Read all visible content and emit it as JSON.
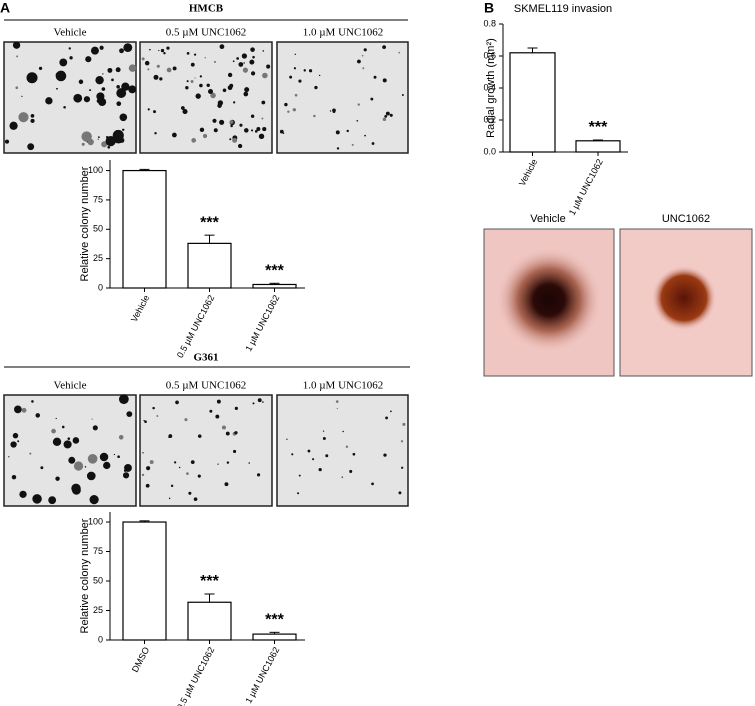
{
  "figure": {
    "panel_a": "A",
    "panel_b": "B",
    "hmcb": {
      "title": "HMCB",
      "columns": [
        "Vehicle",
        "0.5 µM UNC1062",
        "1.0 µM UNC1062"
      ]
    },
    "g361": {
      "title": "G361",
      "columns": [
        "Vehicle",
        "0.5 µM UNC1062",
        "1.0 µM UNC1062"
      ]
    },
    "skmel_images": {
      "columns": [
        "Vehicle",
        "UNC1062"
      ]
    }
  },
  "chart_data": [
    {
      "type": "bar",
      "ylabel": "Relative colony number",
      "categories": [
        "Vehicle",
        "0.5 µM UNC1062",
        "1 µM UNC1062"
      ],
      "values": [
        100,
        38,
        3
      ],
      "errors": [
        1,
        7,
        1
      ],
      "annotations": [
        null,
        "***",
        "***"
      ],
      "color": "#ffffff",
      "ylim": [
        0,
        109
      ],
      "yticks": [
        0,
        25,
        50,
        75,
        100
      ]
    },
    {
      "type": "bar",
      "ylabel": "Relative colony number",
      "categories": [
        "DMSO",
        "0.5 µM UNC1062",
        "1 µM UNC1062"
      ],
      "values": [
        100,
        32,
        5
      ],
      "errors": [
        1,
        7,
        1.5
      ],
      "annotations": [
        null,
        "***",
        "***"
      ],
      "color": "#ffffff",
      "ylim": [
        0,
        108.5
      ],
      "yticks": [
        0,
        25,
        50,
        75,
        100
      ]
    },
    {
      "type": "bar",
      "title": "SKMEL119 invasion",
      "ylabel": "Radial growth (mm²)",
      "categories": [
        "Vehicle",
        "1 µM UNC1062"
      ],
      "values": [
        0.62,
        0.07
      ],
      "errors": [
        0.03,
        0.005
      ],
      "annotations": [
        null,
        "***"
      ],
      "color": "#ffffff",
      "ylim": [
        0,
        0.8
      ],
      "yticks": [
        {
          "value": 0,
          "label": "0.0"
        },
        0.2,
        0.4,
        0.6,
        0.8
      ]
    }
  ]
}
